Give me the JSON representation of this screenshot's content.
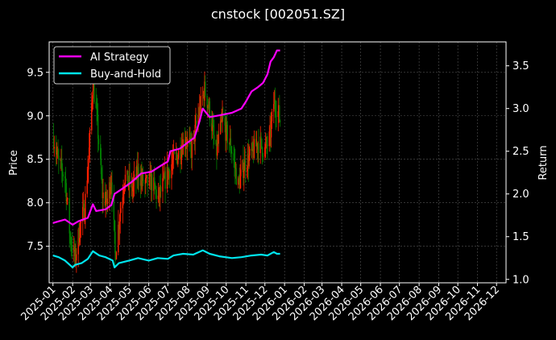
{
  "chart_data": {
    "type": "line",
    "title": "cnstock [002051.SZ]",
    "xlabel": "",
    "ylabel": "Price",
    "y2label": "Return",
    "x_ticks": [
      "2025-01",
      "2025-02",
      "2025-03",
      "2025-04",
      "2025-05",
      "2025-06",
      "2025-07",
      "2025-08",
      "2025-09",
      "2025-10",
      "2025-11",
      "2025-12",
      "2026-01",
      "2026-02",
      "2026-03",
      "2026-04",
      "2026-05",
      "2026-06",
      "2026-07",
      "2026-08",
      "2026-09",
      "2026-10",
      "2026-11",
      "2026-12"
    ],
    "xlim": [
      "2024-12-26",
      "2026-12-16"
    ],
    "ylim": [
      7.08,
      9.85
    ],
    "y_ticks": [
      "7.5",
      "8.0",
      "8.5",
      "9.0",
      "9.5"
    ],
    "y2lim": [
      0.96,
      3.78
    ],
    "y2_ticks": [
      "1.0",
      "1.5",
      "2.0",
      "2.5",
      "3.0",
      "3.5"
    ],
    "grid": true,
    "legend_position": "top-left",
    "colors": {
      "background": "#000000",
      "ai_strategy": "#ff00ff",
      "buy_and_hold": "#00e5ee",
      "candle_up": "#ff2000",
      "candle_down": "#008000",
      "grid": "#555555",
      "axes": "#ffffff"
    },
    "price_path": [
      [
        "2025-01-02",
        8.75
      ],
      [
        "2025-01-10",
        8.45
      ],
      [
        "2025-01-20",
        8.3
      ],
      [
        "2025-01-28",
        7.6
      ],
      [
        "2025-02-05",
        7.35
      ],
      [
        "2025-02-12",
        7.7
      ],
      [
        "2025-02-20",
        7.95
      ],
      [
        "2025-02-27",
        8.6
      ],
      [
        "2025-03-05",
        9.4
      ],
      [
        "2025-03-12",
        8.9
      ],
      [
        "2025-03-20",
        8.1
      ],
      [
        "2025-03-27",
        8.0
      ],
      [
        "2025-04-03",
        8.3
      ],
      [
        "2025-04-09",
        7.4
      ],
      [
        "2025-04-16",
        7.85
      ],
      [
        "2025-04-24",
        8.3
      ],
      [
        "2025-05-05",
        8.15
      ],
      [
        "2025-05-15",
        8.35
      ],
      [
        "2025-05-26",
        8.2
      ],
      [
        "2025-06-05",
        8.25
      ],
      [
        "2025-06-16",
        8.05
      ],
      [
        "2025-06-26",
        8.25
      ],
      [
        "2025-07-07",
        8.45
      ],
      [
        "2025-07-17",
        8.55
      ],
      [
        "2025-07-28",
        8.75
      ],
      [
        "2025-08-07",
        8.6
      ],
      [
        "2025-08-18",
        9.0
      ],
      [
        "2025-08-28",
        9.3
      ],
      [
        "2025-09-05",
        9.05
      ],
      [
        "2025-09-15",
        8.55
      ],
      [
        "2025-09-25",
        8.95
      ],
      [
        "2025-10-10",
        8.6
      ],
      [
        "2025-10-20",
        8.2
      ],
      [
        "2025-10-30",
        8.45
      ],
      [
        "2025-11-10",
        8.55
      ],
      [
        "2025-11-20",
        8.7
      ],
      [
        "2025-12-01",
        8.6
      ],
      [
        "2025-12-09",
        8.75
      ],
      [
        "2025-12-15",
        9.15
      ],
      [
        "2025-12-20",
        9.1
      ],
      [
        "2025-12-25",
        8.95
      ]
    ],
    "series": [
      {
        "name": "AI Strategy",
        "axis": "right",
        "points": [
          [
            "2025-01-01",
            1.66
          ],
          [
            "2025-01-10",
            1.68
          ],
          [
            "2025-01-20",
            1.7
          ],
          [
            "2025-02-01",
            1.64
          ],
          [
            "2025-02-10",
            1.68
          ],
          [
            "2025-02-25",
            1.72
          ],
          [
            "2025-03-05",
            1.88
          ],
          [
            "2025-03-10",
            1.8
          ],
          [
            "2025-03-25",
            1.82
          ],
          [
            "2025-04-03",
            1.87
          ],
          [
            "2025-04-08",
            2.0
          ],
          [
            "2025-04-20",
            2.06
          ],
          [
            "2025-05-05",
            2.14
          ],
          [
            "2025-05-20",
            2.24
          ],
          [
            "2025-06-05",
            2.26
          ],
          [
            "2025-06-20",
            2.33
          ],
          [
            "2025-07-01",
            2.38
          ],
          [
            "2025-07-05",
            2.5
          ],
          [
            "2025-07-20",
            2.53
          ],
          [
            "2025-08-01",
            2.6
          ],
          [
            "2025-08-12",
            2.66
          ],
          [
            "2025-08-20",
            2.85
          ],
          [
            "2025-08-25",
            3.0
          ],
          [
            "2025-09-05",
            2.9
          ],
          [
            "2025-09-20",
            2.92
          ],
          [
            "2025-10-10",
            2.95
          ],
          [
            "2025-10-25",
            3.0
          ],
          [
            "2025-11-01",
            3.08
          ],
          [
            "2025-11-10",
            3.2
          ],
          [
            "2025-11-20",
            3.25
          ],
          [
            "2025-11-28",
            3.3
          ],
          [
            "2025-12-05",
            3.4
          ],
          [
            "2025-12-10",
            3.55
          ],
          [
            "2025-12-15",
            3.6
          ],
          [
            "2025-12-20",
            3.68
          ],
          [
            "2025-12-25",
            3.68
          ]
        ]
      },
      {
        "name": "Buy-and-Hold",
        "axis": "right",
        "points": [
          [
            "2025-01-01",
            1.28
          ],
          [
            "2025-01-10",
            1.26
          ],
          [
            "2025-01-20",
            1.22
          ],
          [
            "2025-02-01",
            1.14
          ],
          [
            "2025-02-05",
            1.17
          ],
          [
            "2025-02-15",
            1.19
          ],
          [
            "2025-02-25",
            1.24
          ],
          [
            "2025-03-05",
            1.33
          ],
          [
            "2025-03-15",
            1.28
          ],
          [
            "2025-03-25",
            1.26
          ],
          [
            "2025-04-05",
            1.22
          ],
          [
            "2025-04-08",
            1.14
          ],
          [
            "2025-04-15",
            1.19
          ],
          [
            "2025-05-01",
            1.22
          ],
          [
            "2025-05-15",
            1.25
          ],
          [
            "2025-06-01",
            1.22
          ],
          [
            "2025-06-15",
            1.25
          ],
          [
            "2025-07-01",
            1.24
          ],
          [
            "2025-07-10",
            1.28
          ],
          [
            "2025-07-25",
            1.3
          ],
          [
            "2025-08-10",
            1.29
          ],
          [
            "2025-08-25",
            1.34
          ],
          [
            "2025-09-05",
            1.3
          ],
          [
            "2025-09-20",
            1.27
          ],
          [
            "2025-10-10",
            1.25
          ],
          [
            "2025-10-25",
            1.26
          ],
          [
            "2025-11-10",
            1.28
          ],
          [
            "2025-11-25",
            1.29
          ],
          [
            "2025-12-05",
            1.28
          ],
          [
            "2025-12-15",
            1.32
          ],
          [
            "2025-12-20",
            1.3
          ],
          [
            "2025-12-25",
            1.3
          ]
        ]
      }
    ]
  }
}
